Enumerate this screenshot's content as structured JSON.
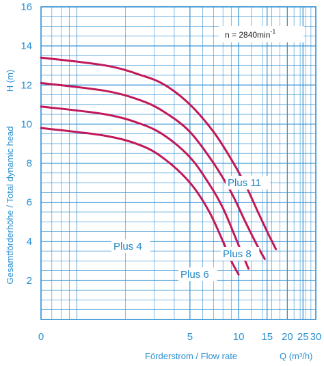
{
  "chart_data": {
    "type": "line",
    "x_scale": "log",
    "xlim": [
      0.6,
      30
    ],
    "ylim": [
      0,
      16
    ],
    "x_ticks": [
      "0",
      "5",
      "10",
      "15",
      "20",
      "25",
      "30"
    ],
    "y_ticks": [
      "2",
      "4",
      "6",
      "8",
      "10",
      "12",
      "14",
      "16"
    ],
    "y_tick_values": [
      2,
      4,
      6,
      8,
      10,
      12,
      14,
      16
    ],
    "xlabel": "Förderstrom / Flow rate",
    "xunit": "Q (m³/h)",
    "ylabel": "Gesamtförderhöhe / Total dynamic head",
    "yunit": "H (m)",
    "annotation": {
      "text": "n = 2840min",
      "sup": "-1"
    },
    "grid": true,
    "colors": {
      "curve": "#c0185a",
      "grid": "#2f8fd2",
      "text": "#2a8fd0",
      "background": "#ffffff"
    },
    "series": [
      {
        "name": "Plus 4",
        "x": [
          0.6,
          1.5,
          2.5,
          3.5,
          5,
          6.5,
          8,
          9,
          10
        ],
        "y": [
          9.8,
          9.4,
          8.9,
          8.2,
          7.0,
          5.6,
          4.0,
          3.0,
          2.3
        ]
      },
      {
        "name": "Plus 6",
        "x": [
          0.6,
          1.5,
          2.5,
          3.5,
          5,
          6.5,
          8,
          10,
          11.5
        ],
        "y": [
          10.9,
          10.5,
          10.0,
          9.4,
          8.3,
          7.0,
          5.7,
          3.8,
          2.6
        ]
      },
      {
        "name": "Plus 8",
        "x": [
          0.6,
          1.5,
          2.5,
          3.5,
          5,
          7,
          9,
          11,
          13,
          14.5
        ],
        "y": [
          12.1,
          11.7,
          11.2,
          10.6,
          9.6,
          8.0,
          6.5,
          5.0,
          3.8,
          3.1
        ]
      },
      {
        "name": "Plus 11",
        "x": [
          0.6,
          1.5,
          2.5,
          3.5,
          5,
          7,
          9,
          11,
          13,
          15,
          17
        ],
        "y": [
          13.4,
          13.0,
          12.5,
          12.0,
          11.0,
          9.6,
          8.2,
          6.9,
          5.6,
          4.5,
          3.6
        ]
      }
    ]
  }
}
